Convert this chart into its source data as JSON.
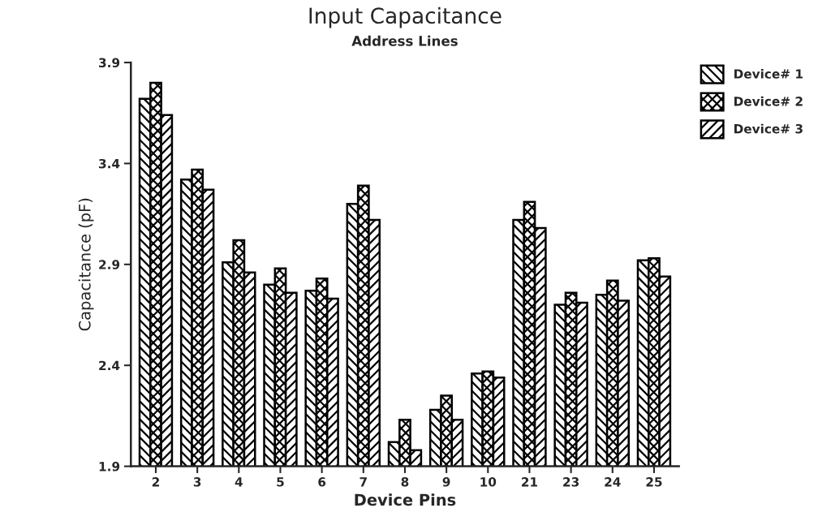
{
  "chart_data": {
    "type": "bar",
    "title": "Input Capacitance",
    "subtitle": "Address Lines",
    "xlabel": "Device Pins",
    "ylabel": "Capacitance (pF)",
    "categories": [
      "2",
      "3",
      "4",
      "5",
      "6",
      "7",
      "8",
      "9",
      "10",
      "21",
      "23",
      "24",
      "25"
    ],
    "series": [
      {
        "name": "Device# 1",
        "color": "#000000",
        "values": [
          3.72,
          3.32,
          2.91,
          2.8,
          2.77,
          3.2,
          2.02,
          2.18,
          2.36,
          3.12,
          2.7,
          2.75,
          2.92
        ]
      },
      {
        "name": "Device# 2",
        "color": "#000000",
        "values": [
          3.8,
          3.37,
          3.02,
          2.88,
          2.83,
          3.29,
          2.13,
          2.25,
          2.37,
          3.21,
          2.76,
          2.82,
          2.93
        ]
      },
      {
        "name": "Device# 3",
        "color": "#000000",
        "values": [
          3.64,
          3.27,
          2.86,
          2.76,
          2.73,
          3.12,
          1.98,
          2.13,
          2.34,
          3.08,
          2.71,
          2.72,
          2.84
        ]
      }
    ],
    "ylim": [
      1.9,
      3.9
    ],
    "yticks": [
      1.9,
      2.4,
      2.9,
      3.4,
      3.9
    ],
    "grid": false,
    "legend": "top right"
  }
}
